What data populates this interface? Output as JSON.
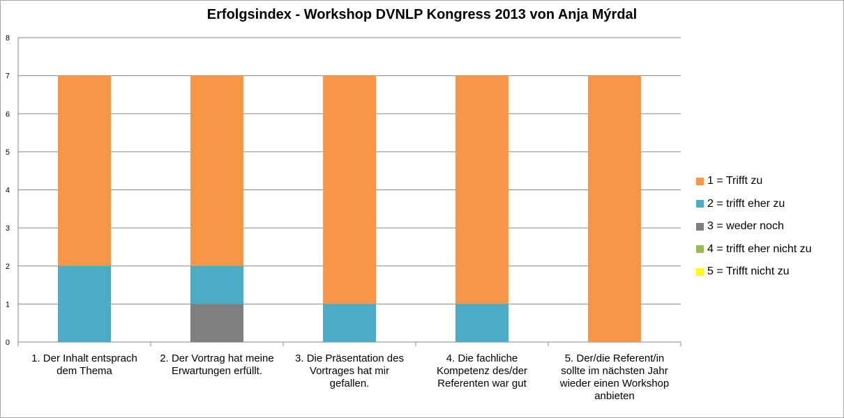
{
  "chart_data": {
    "type": "bar",
    "stacked": true,
    "title": "Erfolgsindex - Workshop DVNLP Kongress 2013 von Anja Mýrdal",
    "categories": [
      [
        "1. Der Inhalt entsprach",
        "dem Thema"
      ],
      [
        "2. Der Vortrag hat meine",
        "Erwartungen erfüllt."
      ],
      [
        "3. Die Präsentation des",
        "Vortrages hat mir",
        "gefallen."
      ],
      [
        "4. Die fachliche",
        "Kompetenz des/der",
        "Referenten war gut"
      ],
      [
        "5. Der/die Referent/in",
        "sollte im nächsten Jahr",
        "wieder einen Workshop",
        "anbieten"
      ]
    ],
    "series": [
      {
        "name": "1 = Trifft zu",
        "color": "#f79646",
        "values": [
          5,
          5,
          6,
          6,
          7
        ]
      },
      {
        "name": "2 = trifft eher zu",
        "color": "#4bacc6",
        "values": [
          2,
          1,
          1,
          1,
          0
        ]
      },
      {
        "name": "3 = weder noch",
        "color": "#7f7f7f",
        "values": [
          0,
          1,
          0,
          0,
          0
        ]
      },
      {
        "name": "4 = trifft eher nicht zu",
        "color": "#9bbb59",
        "values": [
          0,
          0,
          0,
          0,
          0
        ]
      },
      {
        "name": "5 = Trifft nicht zu",
        "color": "#ffff00",
        "values": [
          0,
          0,
          0,
          0,
          0
        ]
      }
    ],
    "stack_order": [
      "5 = Trifft nicht zu",
      "4 = trifft eher nicht zu",
      "3 = weder noch",
      "2 = trifft eher zu",
      "1 = Trifft zu"
    ],
    "ylim": [
      0,
      8
    ],
    "yticks": [
      "0",
      "1",
      "2",
      "3",
      "4",
      "5",
      "6",
      "7",
      "8"
    ],
    "grid": true,
    "legend_position": "right"
  }
}
